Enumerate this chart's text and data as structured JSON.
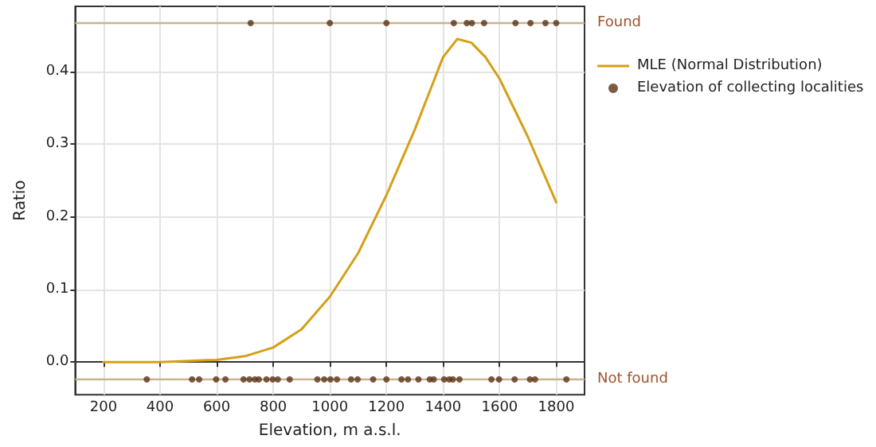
{
  "chart_data": {
    "type": "line",
    "xlabel": "Elevation, m a.s.l.",
    "ylabel": "Ratio",
    "xlim": [
      100,
      1900
    ],
    "xticks": [
      200,
      400,
      600,
      800,
      1000,
      1200,
      1400,
      1600,
      1800
    ],
    "ylim": [
      -0.045,
      0.49
    ],
    "yticks": [
      {
        "value": 0,
        "label": "0.0"
      },
      {
        "value": 0.1,
        "label": "0.1"
      },
      {
        "value": 0.2,
        "label": "0.2"
      },
      {
        "value": 0.3,
        "label": "0.3"
      },
      {
        "value": 0.4,
        "label": "0.4"
      }
    ],
    "grid": true,
    "legend": "right",
    "ref_lines": [
      {
        "axis": "y",
        "value": 0.467,
        "label": "Found",
        "color": "#c8b48c"
      },
      {
        "axis": "y",
        "value": -0.024,
        "label": "Not found",
        "color": "#c8b48c"
      }
    ],
    "series": [
      {
        "name": "MLE (Normal Distribution)",
        "type": "line",
        "color": "#d4a017",
        "marker": "none",
        "line_style": "solid",
        "x": [
          200,
          400,
          600,
          700,
          800,
          900,
          1000,
          1100,
          1200,
          1300,
          1350,
          1400,
          1450,
          1500,
          1550,
          1600,
          1700,
          1750,
          1800
        ],
        "values": [
          0.0,
          0.0,
          0.003,
          0.008,
          0.02,
          0.045,
          0.09,
          0.15,
          0.23,
          0.32,
          0.37,
          0.42,
          0.445,
          0.44,
          0.42,
          0.39,
          0.31,
          0.265,
          0.22
        ]
      },
      {
        "name": "Elevation of collecting localities",
        "type": "scatter",
        "color": "#5c3317",
        "marker": "circle",
        "x": [
          720,
          1000,
          1200,
          1438,
          1484,
          1502,
          1545,
          1656,
          1709,
          1762,
          1800,
          353,
          513,
          538,
          598,
          631,
          695,
          716,
          735,
          749,
          776,
          798,
          816,
          858,
          956,
          980,
          1002,
          1025,
          1075,
          1098,
          1153,
          1200,
          1253,
          1276,
          1313,
          1353,
          1367,
          1404,
          1422,
          1435,
          1458,
          1571,
          1598,
          1653,
          1707,
          1725,
          1836
        ],
        "values": [
          0.467,
          0.467,
          0.467,
          0.467,
          0.467,
          0.467,
          0.467,
          0.467,
          0.467,
          0.467,
          0.467,
          -0.024,
          -0.024,
          -0.024,
          -0.024,
          -0.024,
          -0.024,
          -0.024,
          -0.024,
          -0.024,
          -0.024,
          -0.024,
          -0.024,
          -0.024,
          -0.024,
          -0.024,
          -0.024,
          -0.024,
          -0.024,
          -0.024,
          -0.024,
          -0.024,
          -0.024,
          -0.024,
          -0.024,
          -0.024,
          -0.024,
          -0.024,
          -0.024,
          -0.024,
          -0.024,
          -0.024,
          -0.024,
          -0.024,
          -0.024,
          -0.024,
          -0.024
        ]
      }
    ]
  }
}
